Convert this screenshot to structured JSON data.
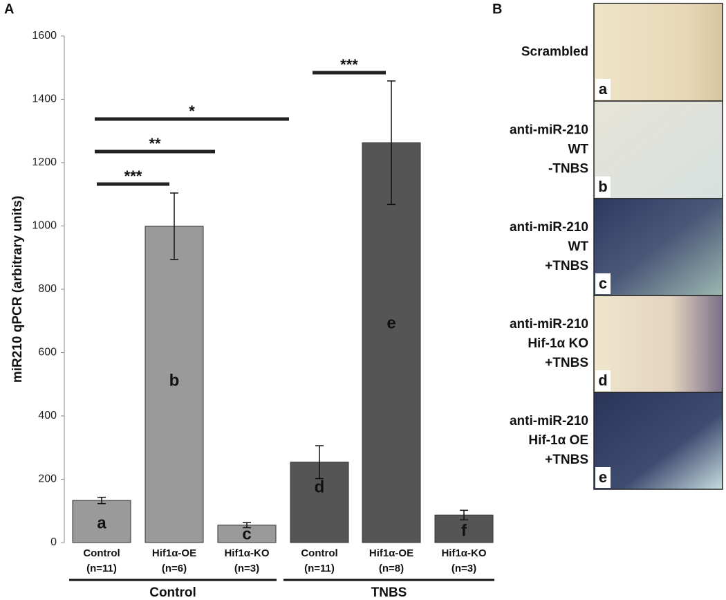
{
  "chart_data": {
    "type": "bar",
    "panel_label": "A",
    "y_label": "miR210 qPCR (arbitrary units)",
    "ylim": [
      0,
      1600
    ],
    "yticks": [
      0,
      200,
      400,
      600,
      800,
      1000,
      1200,
      1400,
      1600
    ],
    "groups": [
      {
        "name": "Control",
        "color": "#9a9a9a",
        "categories": [
          "Control",
          "Hif1α-OE",
          "Hif1α-KO"
        ],
        "n_labels": [
          "(n=11)",
          "(n=6)",
          "(n=3)"
        ],
        "values": [
          133,
          999,
          55
        ],
        "errors": [
          10,
          105,
          8
        ],
        "bar_letters": [
          "a",
          "b",
          "c"
        ]
      },
      {
        "name": "TNBS",
        "color": "#555555",
        "categories": [
          "Control",
          "Hif1α-OE",
          "Hif1α-KO"
        ],
        "n_labels": [
          "(n=11)",
          "(n=8)",
          "(n=3)"
        ],
        "values": [
          254,
          1263,
          87
        ],
        "errors": [
          52,
          195,
          15
        ],
        "bar_letters": [
          "d",
          "e",
          "f"
        ]
      }
    ],
    "significance": [
      {
        "text": "***"
      },
      {
        "text": "**"
      },
      {
        "text": "*"
      },
      {
        "text": "***"
      }
    ]
  },
  "panel_b": {
    "label": "B",
    "images": [
      {
        "caption_lines": [
          "Scrambled"
        ],
        "letter": "a"
      },
      {
        "caption_lines": [
          "anti-miR-210",
          "WT",
          "-TNBS"
        ],
        "letter": "b"
      },
      {
        "caption_lines": [
          "anti-miR-210",
          "WT",
          "+TNBS"
        ],
        "letter": "c"
      },
      {
        "caption_lines": [
          "anti-miR-210",
          "Hif-1α KO",
          "+TNBS"
        ],
        "letter": "d"
      },
      {
        "caption_lines": [
          "anti-miR-210",
          "Hif-1α OE",
          "+TNBS"
        ],
        "letter": "e"
      }
    ]
  }
}
